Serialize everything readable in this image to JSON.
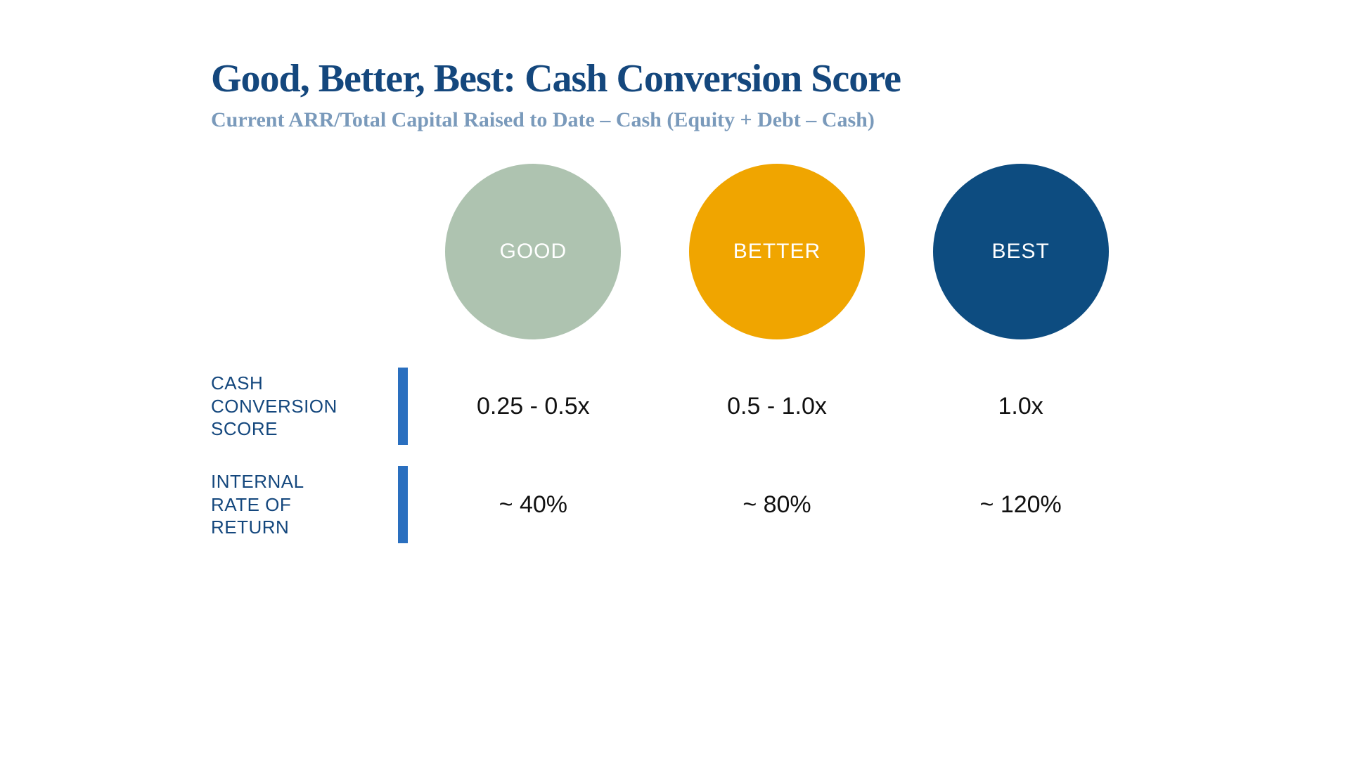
{
  "title": "Good, Better, Best: Cash Conversion Score",
  "subtitle": "Current ARR/Total Capital Raised to Date – Cash (Equity + Debt – Cash)",
  "title_color": "#14477d",
  "subtitle_color": "#7a9abb",
  "bar_color": "#2a6fbf",
  "value_color": "#111111",
  "row_label_color": "#14477d",
  "background_color": "#ffffff",
  "title_fontsize": 56,
  "subtitle_fontsize": 30,
  "circle_label_fontsize": 30,
  "row_label_fontsize": 26,
  "value_fontsize": 34,
  "circles": [
    {
      "label": "GOOD",
      "color": "#aec3b0",
      "text_color": "#ffffff",
      "diameter": 250
    },
    {
      "label": "BETTER",
      "color": "#f0a500",
      "text_color": "#ffffff",
      "diameter": 250
    },
    {
      "label": "BEST",
      "color": "#0d4c80",
      "text_color": "#ffffff",
      "diameter": 250
    }
  ],
  "rows": [
    {
      "label": "CASH\nCONVERSION\nSCORE",
      "values": [
        "0.25 - 0.5x",
        "0.5 - 1.0x",
        "1.0x"
      ]
    },
    {
      "label": "INTERNAL\nRATE OF\nRETURN",
      "values": [
        "~ 40%",
        "~ 80%",
        "~ 120%"
      ]
    }
  ]
}
